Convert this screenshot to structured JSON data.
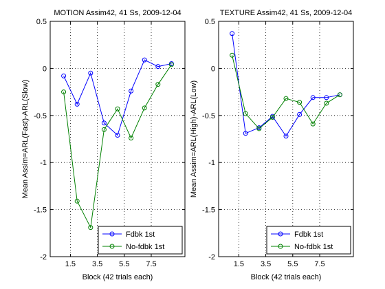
{
  "chart_data": [
    {
      "type": "line",
      "title": "MOTION Assim42, 41 Ss, 2009-12-04",
      "xlabel": "Block (42 trials each)",
      "ylabel": "Mean Assim=ARL(Fast)-ARL(Slow)",
      "xlim": [
        0,
        10
      ],
      "ylim": [
        -2,
        0.5
      ],
      "xticks": [
        1.5,
        3.5,
        5.5,
        7.5
      ],
      "xtick_labels": [
        "1.5",
        "3.5",
        "5.5",
        "7.5"
      ],
      "yticks": [
        -2,
        -1.5,
        -1,
        -0.5,
        0,
        0.5
      ],
      "ytick_labels": [
        "-2",
        "-1.5",
        "-1",
        "-0.5",
        "0",
        "0.5"
      ],
      "grid": "dotted",
      "legend_position": "bottom-right",
      "x": [
        1,
        2,
        3,
        4,
        5,
        6,
        7,
        8,
        9
      ],
      "series": [
        {
          "name": "Fdbk 1st",
          "color": "#0000ff",
          "values": [
            -0.08,
            -0.38,
            -0.05,
            -0.58,
            -0.71,
            -0.24,
            0.09,
            0.02,
            0.05
          ]
        },
        {
          "name": "No-fdbk 1st",
          "color": "#008000",
          "values": [
            -0.25,
            -1.41,
            -1.69,
            -0.65,
            -0.43,
            -0.74,
            -0.42,
            -0.17,
            0.04
          ]
        }
      ]
    },
    {
      "type": "line",
      "title": "TEXTURE Assim42, 41 Ss, 2009-12-04",
      "xlabel": "Block (42 trials each)",
      "ylabel": "Mean Assim=ARL(High)-ARL(Low)",
      "xlim": [
        0,
        10
      ],
      "ylim": [
        -2,
        0.5
      ],
      "xticks": [
        1.5,
        3.5,
        5.5,
        7.5
      ],
      "xtick_labels": [
        "1.5",
        "3.5",
        "5.5",
        "7.5"
      ],
      "yticks": [
        -2,
        -1.5,
        -1,
        -0.5,
        0,
        0.5
      ],
      "ytick_labels": [
        "-2",
        "-1.5",
        "-1",
        "-0.5",
        "0",
        "0.5"
      ],
      "grid": "dotted",
      "legend_position": "bottom-right",
      "x": [
        1,
        2,
        3,
        4,
        5,
        6,
        7,
        8,
        9
      ],
      "series": [
        {
          "name": "Fdbk 1st",
          "color": "#0000ff",
          "values": [
            0.37,
            -0.69,
            -0.63,
            -0.51,
            -0.72,
            -0.49,
            -0.31,
            -0.31,
            -0.28
          ]
        },
        {
          "name": "No-fdbk 1st",
          "color": "#008000",
          "values": [
            0.14,
            -0.48,
            -0.64,
            -0.52,
            -0.32,
            -0.36,
            -0.59,
            -0.37,
            -0.28
          ]
        }
      ]
    }
  ]
}
